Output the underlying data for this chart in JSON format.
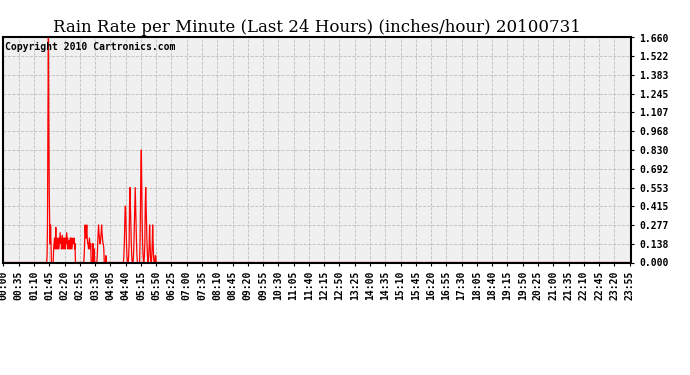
{
  "title": "Rain Rate per Minute (Last 24 Hours) (inches/hour) 20100731",
  "copyright_text": "Copyright 2010 Cartronics.com",
  "background_color": "#ffffff",
  "plot_bg_color": "#f0f0f0",
  "line_color": "#ff0000",
  "grid_color": "#aaaaaa",
  "yticks": [
    0.0,
    0.138,
    0.277,
    0.415,
    0.553,
    0.692,
    0.83,
    0.968,
    1.107,
    1.245,
    1.383,
    1.522,
    1.66
  ],
  "ylim": [
    0.0,
    1.66
  ],
  "total_minutes": 1440,
  "xtick_labels": [
    "00:00",
    "00:35",
    "01:10",
    "01:45",
    "02:20",
    "02:55",
    "03:30",
    "04:05",
    "04:40",
    "05:15",
    "05:50",
    "06:25",
    "07:00",
    "07:35",
    "08:10",
    "08:45",
    "09:20",
    "09:55",
    "10:30",
    "11:05",
    "11:40",
    "12:15",
    "12:50",
    "13:25",
    "14:00",
    "14:35",
    "15:10",
    "15:45",
    "16:20",
    "16:55",
    "17:30",
    "18:05",
    "18:40",
    "19:15",
    "19:50",
    "20:25",
    "21:00",
    "21:35",
    "22:10",
    "22:45",
    "23:20",
    "23:55"
  ],
  "title_fontsize": 12,
  "axis_fontsize": 7,
  "copyright_fontsize": 7
}
